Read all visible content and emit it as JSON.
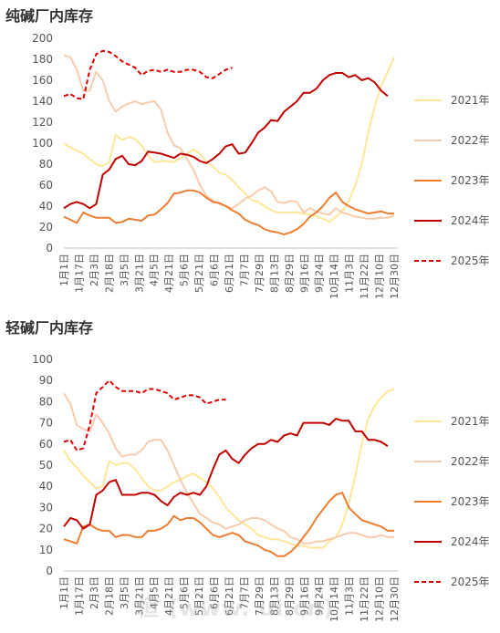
{
  "watermark": "恒 (www.    ui.cn)",
  "categories": [
    "1月1日",
    "1月17日",
    "2月3日",
    "2月18日",
    "3月5日",
    "3月21日",
    "4月5日",
    "4月21日",
    "5月6日",
    "5月21日",
    "6月6日",
    "6月21日",
    "7月7日",
    "7月29日",
    "8月13日",
    "8月29日",
    "9月16日",
    "9月24日",
    "10月14日",
    "11月3日",
    "11月22日",
    "12月10日",
    "12月30日"
  ],
  "chart_data": [
    {
      "type": "line",
      "title": "纯碱厂内库存",
      "ylim": [
        0,
        200
      ],
      "yticks": [
        0,
        20,
        40,
        60,
        80,
        100,
        120,
        140,
        160,
        180,
        200
      ],
      "x_count": 52,
      "legend_position": "right",
      "series": [
        {
          "name": "2021年",
          "color": "#FFE699",
          "dashed": false,
          "values": [
            100,
            96,
            93,
            90,
            85,
            80,
            78,
            82,
            108,
            103,
            106,
            104,
            98,
            88,
            82,
            83,
            83,
            82,
            86,
            90,
            94,
            90,
            82,
            78,
            72,
            70,
            65,
            58,
            52,
            46,
            44,
            40,
            36,
            34,
            34,
            34,
            34,
            33,
            32,
            30,
            28,
            25,
            30,
            35,
            45,
            60,
            80,
            110,
            135,
            155,
            168,
            182
          ]
        },
        {
          "name": "2022年",
          "color": "#F8CBAD",
          "dashed": false,
          "values": [
            184,
            182,
            170,
            150,
            150,
            168,
            160,
            140,
            130,
            135,
            138,
            140,
            137,
            139,
            140,
            132,
            110,
            98,
            95,
            85,
            75,
            60,
            50,
            45,
            42,
            40,
            38,
            42,
            47,
            50,
            55,
            58,
            54,
            44,
            43,
            45,
            44,
            34,
            38,
            35,
            33,
            32,
            38,
            34,
            32,
            30,
            29,
            28,
            28,
            29,
            29,
            31
          ]
        },
        {
          "name": "2023年",
          "color": "#ED7D31",
          "dashed": false,
          "values": [
            30,
            27,
            24,
            34,
            31,
            29,
            29,
            29,
            24,
            25,
            28,
            27,
            26,
            31,
            32,
            37,
            43,
            52,
            53,
            55,
            55,
            53,
            48,
            44,
            43,
            40,
            36,
            33,
            27,
            24,
            22,
            18,
            16,
            15,
            13,
            15,
            18,
            23,
            30,
            34,
            40,
            48,
            53,
            44,
            40,
            37,
            35,
            33,
            34,
            35,
            33,
            33
          ]
        },
        {
          "name": "2024年",
          "color": "#C00000",
          "dashed": false,
          "values": [
            38,
            42,
            44,
            42,
            38,
            42,
            70,
            75,
            85,
            88,
            80,
            79,
            83,
            92,
            91,
            90,
            88,
            86,
            90,
            89,
            87,
            83,
            81,
            85,
            90,
            97,
            99,
            90,
            91,
            100,
            110,
            115,
            122,
            121,
            130,
            135,
            140,
            148,
            148,
            152,
            160,
            165,
            167,
            167,
            163,
            165,
            160,
            162,
            158,
            150,
            145,
            null
          ]
        },
        {
          "name": "2025年",
          "color": "#E00000",
          "dashed": true,
          "values": [
            145,
            147,
            143,
            142,
            170,
            185,
            188,
            187,
            183,
            178,
            175,
            172,
            165,
            169,
            170,
            168,
            170,
            168,
            168,
            170,
            170,
            168,
            163,
            162,
            166,
            170,
            172,
            null,
            null,
            null,
            null,
            null,
            null,
            null,
            null,
            null,
            null,
            null,
            null,
            null,
            null,
            null,
            null,
            null,
            null,
            null,
            null,
            null,
            null,
            null,
            null,
            null
          ]
        }
      ]
    },
    {
      "type": "line",
      "title": "轻碱厂内库存",
      "ylim": [
        0,
        100
      ],
      "yticks": [
        0,
        10,
        20,
        30,
        40,
        50,
        60,
        70,
        80,
        90,
        100
      ],
      "x_count": 52,
      "legend_position": "right",
      "series": [
        {
          "name": "2021年",
          "color": "#FFE699",
          "dashed": false,
          "values": [
            57,
            52,
            49,
            45,
            42,
            39,
            40,
            52,
            50,
            51,
            51,
            48,
            44,
            40,
            38,
            38,
            40,
            42,
            43,
            45,
            46,
            44,
            42,
            39,
            35,
            30,
            27,
            24,
            22,
            20,
            17,
            16,
            15,
            15,
            14,
            13,
            12,
            12,
            11,
            11,
            11,
            14,
            16,
            22,
            32,
            45,
            60,
            72,
            78,
            82,
            85,
            86
          ]
        },
        {
          "name": "2022年",
          "color": "#F8CBAD",
          "dashed": false,
          "values": [
            84,
            79,
            69,
            67,
            66,
            74,
            70,
            65,
            58,
            54,
            55,
            55,
            57,
            61,
            62,
            62,
            57,
            50,
            43,
            37,
            32,
            27,
            25,
            23,
            22,
            20,
            21,
            22,
            24,
            25,
            25,
            24,
            22,
            20,
            19,
            16,
            15,
            13,
            13,
            14,
            14,
            15,
            16,
            17,
            18,
            18,
            17,
            16,
            16,
            17,
            16,
            16
          ]
        },
        {
          "name": "2023年",
          "color": "#ED7D31",
          "dashed": false,
          "values": [
            15,
            14,
            13,
            21,
            22,
            20,
            19,
            19,
            16,
            17,
            17,
            16,
            16,
            19,
            19,
            20,
            22,
            26,
            24,
            25,
            25,
            23,
            20,
            17,
            16,
            17,
            18,
            17,
            14,
            13,
            12,
            10,
            9,
            7,
            7,
            9,
            12,
            16,
            20,
            25,
            29,
            33,
            36,
            37,
            30,
            27,
            24,
            23,
            22,
            21,
            19,
            19
          ]
        },
        {
          "name": "2024年",
          "color": "#C00000",
          "dashed": false,
          "values": [
            21,
            25,
            24,
            20,
            22,
            36,
            38,
            42,
            43,
            36,
            36,
            36,
            37,
            37,
            36,
            33,
            31,
            35,
            37,
            36,
            37,
            36,
            40,
            48,
            55,
            57,
            53,
            51,
            55,
            58,
            60,
            60,
            62,
            61,
            64,
            65,
            64,
            70,
            70,
            70,
            70,
            69,
            72,
            71,
            71,
            66,
            66,
            62,
            62,
            61,
            59,
            null
          ]
        },
        {
          "name": "2025年",
          "color": "#E00000",
          "dashed": true,
          "values": [
            61,
            62,
            57,
            58,
            69,
            84,
            87,
            90,
            87,
            85,
            85,
            85,
            84,
            86,
            86,
            85,
            84,
            81,
            82,
            83,
            83,
            82,
            79,
            80,
            81,
            81,
            null,
            null,
            null,
            null,
            null,
            null,
            null,
            null,
            null,
            null,
            null,
            null,
            null,
            null,
            null,
            null,
            null,
            null,
            null,
            null,
            null,
            null,
            null,
            null,
            null,
            null
          ]
        }
      ]
    }
  ]
}
